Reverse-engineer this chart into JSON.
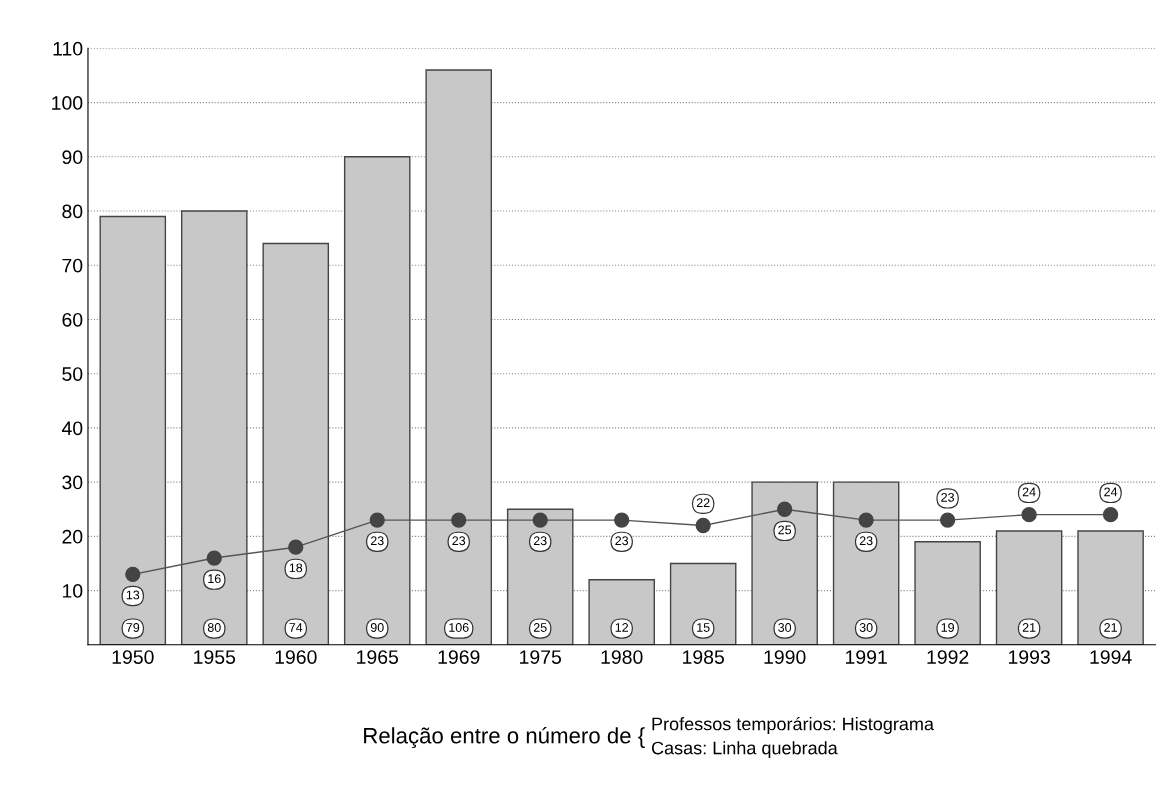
{
  "chart_data": {
    "type": "bar",
    "categories": [
      "1950",
      "1955",
      "1960",
      "1965",
      "1969",
      "1975",
      "1980",
      "1985",
      "1990",
      "1991",
      "1992",
      "1993",
      "1994"
    ],
    "series": [
      {
        "color": "#c8c8c8",
        "values": [
          79,
          80,
          74,
          90,
          106,
          25,
          12,
          15,
          30,
          30,
          19,
          21,
          21
        ]
      },
      {
        "type": "line",
        "color": "#555555",
        "marker": "circle",
        "values": [
          13,
          16,
          18,
          23,
          23,
          23,
          23,
          22,
          25,
          23,
          23,
          24,
          24
        ]
      }
    ],
    "ylim": [
      0,
      110
    ],
    "yticks": [
      10,
      20,
      30,
      40,
      50,
      60,
      70,
      80,
      90,
      100,
      110
    ],
    "grid": "y",
    "data_labels": true,
    "annotations": [
      "Relação entre o número de {",
      "Professos temporários: Histograma",
      "Casas: Linha quebrada"
    ]
  }
}
